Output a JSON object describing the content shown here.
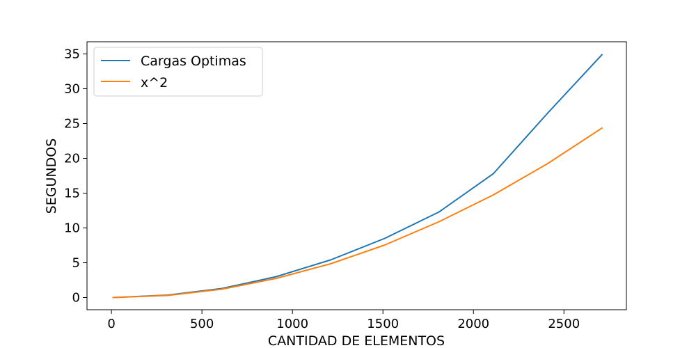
{
  "chart_data": {
    "type": "line",
    "title": "",
    "xlabel": "CANTIDAD DE ELEMENTOS",
    "ylabel": "SEGUNDOS",
    "xlim": [
      -135,
      2845
    ],
    "ylim": [
      -1.75,
      36.75
    ],
    "x_ticks": [
      0,
      500,
      1000,
      1500,
      2000,
      2500
    ],
    "y_ticks": [
      0,
      5,
      10,
      15,
      20,
      25,
      30,
      35
    ],
    "x_tick_labels": [
      "0",
      "500",
      "1000",
      "1500",
      "2000",
      "2500"
    ],
    "y_tick_labels": [
      "0",
      "5",
      "10",
      "15",
      "20",
      "25",
      "30",
      "35"
    ],
    "grid": false,
    "legend_position": "upper-left",
    "series": [
      {
        "name": "Cargas Optimas",
        "color": "#1f77b4",
        "x": [
          10,
          310,
          610,
          910,
          1210,
          1510,
          1810,
          2110,
          2410,
          2710
        ],
        "y": [
          0.0,
          0.35,
          1.3,
          3.0,
          5.4,
          8.5,
          12.3,
          17.8,
          26.5,
          34.9
        ]
      },
      {
        "name": "x^2",
        "color": "#ff7f0e",
        "x": [
          10,
          310,
          610,
          910,
          1210,
          1510,
          1810,
          2110,
          2410,
          2710
        ],
        "y": [
          0.0,
          0.3,
          1.2,
          2.75,
          4.85,
          7.55,
          10.9,
          14.75,
          19.25,
          24.35
        ]
      }
    ]
  }
}
